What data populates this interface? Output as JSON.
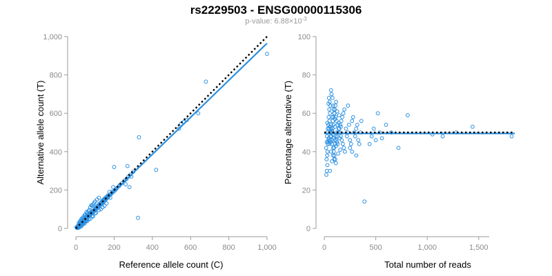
{
  "header": {
    "title": "rs2229503 - ENSG00000115306",
    "pvalue_prefix": "p-value: 6.88×10",
    "pvalue_exponent": "-3"
  },
  "colors": {
    "points": "#2b8fe0",
    "fit_line": "#2b8fe0",
    "reference_line": "#000000"
  },
  "chart_data": [
    {
      "type": "scatter",
      "xlabel": "Reference allele count (C)",
      "ylabel": "Alternative allele count (T)",
      "xlim": [
        0,
        1000
      ],
      "ylim": [
        0,
        1000
      ],
      "xticks": [
        0,
        200,
        400,
        600,
        800,
        1000
      ],
      "xtick_labels": [
        "0",
        "200",
        "400",
        "600",
        "800",
        "1,000"
      ],
      "yticks": [
        0,
        200,
        400,
        600,
        800,
        1000
      ],
      "ytick_labels": [
        "0",
        "200",
        "400",
        "600",
        "800",
        "1,000"
      ],
      "grid": false,
      "marker": "open-circle",
      "points": [
        [
          5,
          4
        ],
        [
          8,
          6
        ],
        [
          10,
          9
        ],
        [
          12,
          8
        ],
        [
          14,
          15
        ],
        [
          15,
          12
        ],
        [
          18,
          14
        ],
        [
          20,
          16
        ],
        [
          22,
          20
        ],
        [
          24,
          18
        ],
        [
          25,
          27
        ],
        [
          27,
          22
        ],
        [
          28,
          30
        ],
        [
          30,
          25
        ],
        [
          32,
          28
        ],
        [
          33,
          36
        ],
        [
          35,
          31
        ],
        [
          37,
          33
        ],
        [
          38,
          40
        ],
        [
          40,
          35
        ],
        [
          42,
          38
        ],
        [
          43,
          46
        ],
        [
          45,
          40
        ],
        [
          47,
          44
        ],
        [
          48,
          50
        ],
        [
          50,
          45
        ],
        [
          52,
          48
        ],
        [
          54,
          56
        ],
        [
          55,
          50
        ],
        [
          57,
          52
        ],
        [
          58,
          60
        ],
        [
          60,
          55
        ],
        [
          62,
          58
        ],
        [
          63,
          66
        ],
        [
          65,
          60
        ],
        [
          67,
          64
        ],
        [
          68,
          70
        ],
        [
          70,
          65
        ],
        [
          72,
          68
        ],
        [
          74,
          78
        ],
        [
          75,
          70
        ],
        [
          77,
          72
        ],
        [
          78,
          82
        ],
        [
          80,
          75
        ],
        [
          82,
          78
        ],
        [
          84,
          88
        ],
        [
          85,
          80
        ],
        [
          88,
          84
        ],
        [
          90,
          92
        ],
        [
          92,
          86
        ],
        [
          95,
          90
        ],
        [
          98,
          100
        ],
        [
          100,
          95
        ],
        [
          102,
          98
        ],
        [
          105,
          110
        ],
        [
          108,
          104
        ],
        [
          110,
          105
        ],
        [
          112,
          116
        ],
        [
          115,
          110
        ],
        [
          118,
          112
        ],
        [
          120,
          126
        ],
        [
          122,
          118
        ],
        [
          125,
          120
        ],
        [
          128,
          132
        ],
        [
          130,
          125
        ],
        [
          132,
          128
        ],
        [
          135,
          142
        ],
        [
          138,
          132
        ],
        [
          140,
          136
        ],
        [
          142,
          148
        ],
        [
          145,
          140
        ],
        [
          148,
          144
        ],
        [
          150,
          156
        ],
        [
          152,
          148
        ],
        [
          155,
          150
        ],
        [
          158,
          162
        ],
        [
          160,
          154
        ],
        [
          162,
          158
        ],
        [
          165,
          170
        ],
        [
          168,
          162
        ],
        [
          30,
          50
        ],
        [
          45,
          68
        ],
        [
          60,
          80
        ],
        [
          70,
          96
        ],
        [
          85,
          118
        ],
        [
          95,
          132
        ],
        [
          55,
          85
        ],
        [
          40,
          60
        ],
        [
          75,
          110
        ],
        [
          110,
          150
        ],
        [
          20,
          35
        ],
        [
          35,
          55
        ],
        [
          50,
          72
        ],
        [
          65,
          90
        ],
        [
          100,
          140
        ],
        [
          80,
          120
        ],
        [
          25,
          42
        ],
        [
          15,
          28
        ],
        [
          90,
          125
        ],
        [
          120,
          160
        ],
        [
          18,
          5
        ],
        [
          30,
          12
        ],
        [
          45,
          25
        ],
        [
          60,
          38
        ],
        [
          75,
          50
        ],
        [
          90,
          62
        ],
        [
          105,
          80
        ],
        [
          120,
          95
        ],
        [
          140,
          110
        ],
        [
          160,
          130
        ],
        [
          8,
          2
        ],
        [
          12,
          3
        ],
        [
          22,
          10
        ],
        [
          38,
          24
        ],
        [
          52,
          36
        ],
        [
          68,
          48
        ],
        [
          85,
          65
        ],
        [
          100,
          78
        ],
        [
          130,
          100
        ],
        [
          150,
          118
        ],
        [
          3,
          6
        ],
        [
          6,
          3
        ],
        [
          9,
          12
        ],
        [
          11,
          5
        ],
        [
          16,
          20
        ],
        [
          19,
          10
        ],
        [
          23,
          28
        ],
        [
          26,
          15
        ],
        [
          29,
          34
        ],
        [
          31,
          20
        ],
        [
          34,
          42
        ],
        [
          36,
          26
        ],
        [
          39,
          46
        ],
        [
          41,
          30
        ],
        [
          44,
          52
        ],
        [
          46,
          34
        ],
        [
          49,
          58
        ],
        [
          51,
          38
        ],
        [
          53,
          62
        ],
        [
          56,
          42
        ],
        [
          172,
          168
        ],
        [
          178,
          175
        ],
        [
          185,
          180
        ],
        [
          190,
          186
        ],
        [
          198,
          192
        ],
        [
          205,
          198
        ],
        [
          175,
          190
        ],
        [
          195,
          215
        ],
        [
          210,
          205
        ],
        [
          180,
          160
        ],
        [
          200,
          320
        ],
        [
          240,
          235
        ],
        [
          255,
          250
        ],
        [
          265,
          258
        ],
        [
          275,
          270
        ],
        [
          285,
          280
        ],
        [
          225,
          220
        ],
        [
          230,
          226
        ],
        [
          215,
          210
        ],
        [
          260,
          230
        ],
        [
          270,
          325
        ],
        [
          280,
          215
        ],
        [
          290,
          270
        ],
        [
          300,
          295
        ],
        [
          330,
          475
        ],
        [
          325,
          55
        ],
        [
          420,
          305
        ],
        [
          540,
          520
        ],
        [
          550,
          545
        ],
        [
          565,
          555
        ],
        [
          580,
          565
        ],
        [
          640,
          600
        ],
        [
          680,
          765
        ],
        [
          1000,
          910
        ],
        [
          60,
          60
        ],
        [
          70,
          72
        ],
        [
          80,
          82
        ],
        [
          90,
          88
        ],
        [
          100,
          102
        ],
        [
          110,
          108
        ],
        [
          120,
          118
        ],
        [
          130,
          128
        ],
        [
          140,
          142
        ],
        [
          150,
          152
        ],
        [
          160,
          158
        ],
        [
          170,
          172
        ],
        [
          180,
          178
        ],
        [
          190,
          192
        ],
        [
          35,
          35
        ],
        [
          45,
          44
        ],
        [
          55,
          54
        ],
        [
          65,
          66
        ],
        [
          75,
          76
        ],
        [
          85,
          86
        ],
        [
          95,
          96
        ],
        [
          105,
          104
        ],
        [
          115,
          114
        ],
        [
          125,
          124
        ],
        [
          135,
          134
        ],
        [
          145,
          146
        ]
      ],
      "fit_line": [
        [
          0,
          0
        ],
        [
          1000,
          965
        ]
      ],
      "reference_line": [
        [
          0,
          0
        ],
        [
          1000,
          1000
        ]
      ]
    },
    {
      "type": "scatter",
      "xlabel": "Total number of reads",
      "ylabel": "Percentage alternative (T)",
      "xlim": [
        0,
        1850
      ],
      "ylim": [
        0,
        100
      ],
      "xticks": [
        0,
        500,
        1000,
        1500
      ],
      "xtick_labels": [
        "0",
        "500",
        "1,000",
        "1,500"
      ],
      "yticks": [
        0,
        20,
        40,
        60,
        80,
        100
      ],
      "ytick_labels": [
        "0",
        "20",
        "40",
        "60",
        "80",
        "100"
      ],
      "grid": false,
      "marker": "open-circle",
      "points": [
        [
          20,
          28
        ],
        [
          25,
          30
        ],
        [
          22,
          36
        ],
        [
          28,
          38
        ],
        [
          30,
          40
        ],
        [
          18,
          42
        ],
        [
          35,
          44
        ],
        [
          40,
          46
        ],
        [
          26,
          48
        ],
        [
          32,
          50
        ],
        [
          45,
          52
        ],
        [
          38,
          54
        ],
        [
          50,
          56
        ],
        [
          42,
          58
        ],
        [
          55,
          60
        ],
        [
          48,
          62
        ],
        [
          60,
          64
        ],
        [
          52,
          66
        ],
        [
          30,
          55
        ],
        [
          35,
          45
        ],
        [
          40,
          65
        ],
        [
          65,
          72
        ],
        [
          70,
          70
        ],
        [
          80,
          68
        ],
        [
          90,
          62
        ],
        [
          100,
          60
        ],
        [
          110,
          58
        ],
        [
          120,
          56
        ],
        [
          130,
          54
        ],
        [
          140,
          52
        ],
        [
          150,
          50
        ],
        [
          160,
          48
        ],
        [
          170,
          46
        ],
        [
          180,
          44
        ],
        [
          190,
          42
        ],
        [
          200,
          40
        ],
        [
          75,
          35
        ],
        [
          85,
          38
        ],
        [
          95,
          42
        ],
        [
          105,
          44
        ],
        [
          115,
          46
        ],
        [
          125,
          48
        ],
        [
          135,
          50
        ],
        [
          145,
          52
        ],
        [
          155,
          54
        ],
        [
          165,
          56
        ],
        [
          175,
          58
        ],
        [
          185,
          60
        ],
        [
          195,
          62
        ],
        [
          60,
          48
        ],
        [
          70,
          50
        ],
        [
          80,
          52
        ],
        [
          90,
          54
        ],
        [
          100,
          46
        ],
        [
          110,
          48
        ],
        [
          120,
          50
        ],
        [
          130,
          44
        ],
        [
          140,
          55
        ],
        [
          150,
          47
        ],
        [
          160,
          53
        ],
        [
          50,
          44
        ],
        [
          55,
          46
        ],
        [
          58,
          50
        ],
        [
          62,
          52
        ],
        [
          66,
          54
        ],
        [
          68,
          48
        ],
        [
          72,
          46
        ],
        [
          76,
          44
        ],
        [
          78,
          52
        ],
        [
          82,
          56
        ],
        [
          86,
          42
        ],
        [
          88,
          58
        ],
        [
          92,
          40
        ],
        [
          96,
          60
        ],
        [
          98,
          38
        ],
        [
          102,
          62
        ],
        [
          106,
          36
        ],
        [
          108,
          64
        ],
        [
          112,
          34
        ],
        [
          114,
          66
        ],
        [
          210,
          52
        ],
        [
          220,
          48
        ],
        [
          230,
          50
        ],
        [
          240,
          54
        ],
        [
          250,
          46
        ],
        [
          260,
          44
        ],
        [
          270,
          56
        ],
        [
          280,
          58
        ],
        [
          290,
          50
        ],
        [
          300,
          48
        ],
        [
          310,
          52
        ],
        [
          320,
          54
        ],
        [
          330,
          46
        ],
        [
          340,
          44
        ],
        [
          350,
          50
        ],
        [
          230,
          64
        ],
        [
          250,
          42
        ],
        [
          270,
          40
        ],
        [
          310,
          38
        ],
        [
          360,
          56
        ],
        [
          390,
          14
        ],
        [
          440,
          44
        ],
        [
          460,
          48
        ],
        [
          480,
          52
        ],
        [
          500,
          46
        ],
        [
          520,
          60
        ],
        [
          540,
          50
        ],
        [
          560,
          47
        ],
        [
          600,
          54
        ],
        [
          650,
          50
        ],
        [
          720,
          42
        ],
        [
          810,
          59
        ],
        [
          1050,
          49
        ],
        [
          1150,
          48
        ],
        [
          1280,
          50
        ],
        [
          1440,
          53
        ],
        [
          1820,
          48
        ],
        [
          30,
          33
        ],
        [
          45,
          68
        ],
        [
          55,
          30
        ],
        [
          65,
          40
        ],
        [
          75,
          58
        ],
        [
          85,
          64
        ],
        [
          95,
          36
        ],
        [
          105,
          57
        ],
        [
          115,
          43
        ],
        [
          125,
          61
        ],
        [
          135,
          39
        ],
        [
          145,
          59
        ],
        [
          155,
          41
        ],
        [
          24,
          45
        ],
        [
          34,
          52
        ],
        [
          44,
          47
        ],
        [
          54,
          53
        ],
        [
          64,
          45
        ],
        [
          74,
          51
        ],
        [
          84,
          49
        ],
        [
          94,
          47
        ],
        [
          104,
          53
        ],
        [
          124,
          45
        ]
      ],
      "fit_line": [
        [
          0,
          49.5
        ],
        [
          1850,
          49.5
        ]
      ],
      "reference_line": [
        [
          0,
          50
        ],
        [
          1850,
          50
        ]
      ]
    }
  ]
}
